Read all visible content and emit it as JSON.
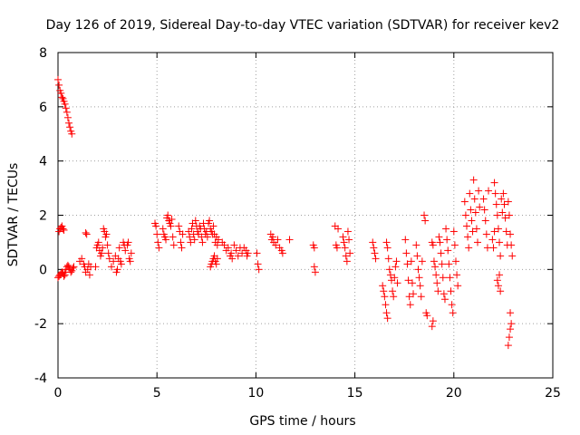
{
  "chart_data": {
    "type": "scatter",
    "title": "Day 126 of 2019, Sidereal Day-to-day VTEC variation (SDTVAR) for receiver kev2",
    "xlabel": "GPS time / hours",
    "ylabel": "SDTVAR / TECUs",
    "xlim": [
      0,
      25
    ],
    "ylim": [
      -4,
      8
    ],
    "grid": true,
    "marker": "+",
    "color": "#ff0000",
    "xticks": [
      "0",
      "5",
      "10",
      "15",
      "20",
      "25"
    ],
    "yticks": [
      "-4",
      "-2",
      "0",
      "2",
      "4",
      "6",
      "8"
    ],
    "series": [
      {
        "name": "SDTVAR",
        "points": [
          [
            0.0,
            7.0
          ],
          [
            0.05,
            6.8
          ],
          [
            0.1,
            6.6
          ],
          [
            0.15,
            6.5
          ],
          [
            0.2,
            6.35
          ],
          [
            0.25,
            6.3
          ],
          [
            0.3,
            6.2
          ],
          [
            0.35,
            6.1
          ],
          [
            0.4,
            5.95
          ],
          [
            0.45,
            5.8
          ],
          [
            0.5,
            5.6
          ],
          [
            0.55,
            5.4
          ],
          [
            0.6,
            5.25
          ],
          [
            0.65,
            5.1
          ],
          [
            0.7,
            5.0
          ],
          [
            0.0,
            -0.3
          ],
          [
            0.05,
            -0.25
          ],
          [
            0.1,
            -0.2
          ],
          [
            0.15,
            -0.15
          ],
          [
            0.2,
            -0.1
          ],
          [
            0.25,
            -0.15
          ],
          [
            0.3,
            -0.25
          ],
          [
            0.35,
            -0.2
          ],
          [
            0.05,
            1.4
          ],
          [
            0.1,
            1.5
          ],
          [
            0.15,
            1.55
          ],
          [
            0.2,
            1.6
          ],
          [
            0.25,
            1.5
          ],
          [
            0.3,
            1.45
          ],
          [
            0.35,
            -0.1
          ],
          [
            0.4,
            0.0
          ],
          [
            0.45,
            0.1
          ],
          [
            0.5,
            0.15
          ],
          [
            0.55,
            0.1
          ],
          [
            0.6,
            0.0
          ],
          [
            0.65,
            -0.1
          ],
          [
            0.7,
            -0.05
          ],
          [
            0.75,
            0.05
          ],
          [
            0.8,
            0.1
          ],
          [
            1.1,
            0.3
          ],
          [
            1.2,
            0.4
          ],
          [
            1.3,
            0.2
          ],
          [
            1.35,
            0.1
          ],
          [
            1.4,
            -0.1
          ],
          [
            1.5,
            0.0
          ],
          [
            1.55,
            0.2
          ],
          [
            1.6,
            -0.2
          ],
          [
            1.65,
            0.1
          ],
          [
            1.4,
            1.35
          ],
          [
            1.45,
            1.3
          ],
          [
            1.9,
            0.1
          ],
          [
            1.95,
            0.8
          ],
          [
            2.0,
            0.9
          ],
          [
            2.05,
            1.0
          ],
          [
            2.1,
            0.7
          ],
          [
            2.15,
            0.5
          ],
          [
            2.2,
            0.6
          ],
          [
            2.25,
            0.8
          ],
          [
            2.3,
            1.5
          ],
          [
            2.35,
            1.4
          ],
          [
            2.4,
            1.2
          ],
          [
            2.45,
            1.3
          ],
          [
            2.5,
            0.9
          ],
          [
            2.55,
            0.6
          ],
          [
            2.6,
            0.4
          ],
          [
            2.7,
            0.1
          ],
          [
            2.8,
            0.3
          ],
          [
            2.9,
            0.5
          ],
          [
            2.95,
            -0.1
          ],
          [
            3.0,
            0.0
          ],
          [
            3.05,
            0.4
          ],
          [
            3.1,
            0.8
          ],
          [
            3.15,
            0.3
          ],
          [
            3.2,
            0.2
          ],
          [
            3.3,
            1.0
          ],
          [
            3.35,
            0.9
          ],
          [
            3.4,
            0.7
          ],
          [
            3.5,
            0.9
          ],
          [
            3.55,
            1.0
          ],
          [
            3.6,
            0.4
          ],
          [
            3.65,
            0.3
          ],
          [
            3.7,
            0.6
          ],
          [
            4.9,
            1.7
          ],
          [
            4.95,
            1.6
          ],
          [
            5.0,
            1.3
          ],
          [
            5.05,
            1.0
          ],
          [
            5.1,
            0.8
          ],
          [
            5.3,
            1.5
          ],
          [
            5.35,
            1.3
          ],
          [
            5.4,
            1.2
          ],
          [
            5.45,
            1.1
          ],
          [
            5.5,
            1.9
          ],
          [
            5.55,
            2.0
          ],
          [
            5.6,
            1.8
          ],
          [
            5.65,
            1.7
          ],
          [
            5.7,
            1.6
          ],
          [
            5.75,
            1.85
          ],
          [
            5.8,
            1.2
          ],
          [
            5.85,
            0.9
          ],
          [
            6.1,
            1.6
          ],
          [
            6.15,
            1.4
          ],
          [
            6.2,
            1.0
          ],
          [
            6.25,
            0.8
          ],
          [
            6.3,
            1.3
          ],
          [
            6.6,
            1.4
          ],
          [
            6.65,
            1.2
          ],
          [
            6.7,
            1.0
          ],
          [
            6.75,
            1.5
          ],
          [
            6.8,
            1.7
          ],
          [
            6.85,
            1.3
          ],
          [
            6.9,
            1.1
          ],
          [
            6.95,
            1.8
          ],
          [
            7.0,
            1.6
          ],
          [
            7.05,
            1.4
          ],
          [
            7.1,
            1.3
          ],
          [
            7.15,
            1.6
          ],
          [
            7.2,
            1.5
          ],
          [
            7.25,
            1.2
          ],
          [
            7.3,
            1.0
          ],
          [
            7.35,
            1.7
          ],
          [
            7.4,
            1.5
          ],
          [
            7.45,
            1.3
          ],
          [
            7.5,
            1.4
          ],
          [
            7.55,
            1.2
          ],
          [
            7.6,
            1.7
          ],
          [
            7.65,
            1.8
          ],
          [
            7.7,
            1.5
          ],
          [
            7.75,
            1.4
          ],
          [
            7.8,
            1.3
          ],
          [
            7.85,
            1.6
          ],
          [
            7.9,
            1.3
          ],
          [
            7.95,
            1.0
          ],
          [
            8.0,
            1.2
          ],
          [
            8.05,
            0.9
          ],
          [
            8.1,
            1.1
          ],
          [
            7.7,
            0.1
          ],
          [
            7.75,
            0.2
          ],
          [
            7.8,
            0.3
          ],
          [
            7.85,
            0.4
          ],
          [
            7.9,
            0.5
          ],
          [
            7.95,
            0.3
          ],
          [
            8.0,
            0.2
          ],
          [
            8.05,
            0.4
          ],
          [
            8.3,
            1.0
          ],
          [
            8.4,
            0.9
          ],
          [
            8.5,
            0.7
          ],
          [
            8.6,
            0.8
          ],
          [
            8.7,
            0.5
          ],
          [
            8.75,
            0.6
          ],
          [
            8.8,
            0.4
          ],
          [
            8.9,
            0.9
          ],
          [
            9.0,
            0.7
          ],
          [
            9.1,
            0.5
          ],
          [
            9.2,
            0.8
          ],
          [
            9.3,
            0.6
          ],
          [
            9.4,
            0.8
          ],
          [
            9.5,
            0.7
          ],
          [
            9.55,
            0.5
          ],
          [
            9.6,
            0.6
          ],
          [
            10.05,
            0.6
          ],
          [
            10.1,
            0.2
          ],
          [
            10.15,
            0.0
          ],
          [
            10.75,
            1.3
          ],
          [
            10.8,
            1.1
          ],
          [
            10.85,
            1.2
          ],
          [
            10.9,
            1.0
          ],
          [
            11.0,
            0.9
          ],
          [
            11.1,
            1.1
          ],
          [
            11.2,
            0.8
          ],
          [
            11.3,
            0.7
          ],
          [
            11.35,
            0.6
          ],
          [
            11.7,
            1.1
          ],
          [
            12.9,
            0.9
          ],
          [
            12.95,
            0.8
          ],
          [
            12.95,
            0.1
          ],
          [
            13.0,
            -0.1
          ],
          [
            14.0,
            1.6
          ],
          [
            14.05,
            0.9
          ],
          [
            14.1,
            0.8
          ],
          [
            14.15,
            1.5
          ],
          [
            14.4,
            1.2
          ],
          [
            14.45,
            1.0
          ],
          [
            14.5,
            0.8
          ],
          [
            14.55,
            0.5
          ],
          [
            14.6,
            0.3
          ],
          [
            14.65,
            1.4
          ],
          [
            14.7,
            1.1
          ],
          [
            14.75,
            0.6
          ],
          [
            15.9,
            1.0
          ],
          [
            15.95,
            0.8
          ],
          [
            16.0,
            0.6
          ],
          [
            16.05,
            0.4
          ],
          [
            16.4,
            -0.6
          ],
          [
            16.45,
            -0.8
          ],
          [
            16.5,
            -1.0
          ],
          [
            16.55,
            -1.3
          ],
          [
            16.6,
            -1.6
          ],
          [
            16.65,
            -1.8
          ],
          [
            16.6,
            1.0
          ],
          [
            16.65,
            0.8
          ],
          [
            16.7,
            0.4
          ],
          [
            16.75,
            0.0
          ],
          [
            16.8,
            -0.2
          ],
          [
            16.85,
            -0.4
          ],
          [
            16.9,
            -0.8
          ],
          [
            16.95,
            -1.0
          ],
          [
            17.0,
            -0.3
          ],
          [
            17.05,
            0.1
          ],
          [
            17.1,
            0.3
          ],
          [
            17.15,
            -0.5
          ],
          [
            17.55,
            1.1
          ],
          [
            17.6,
            0.6
          ],
          [
            17.65,
            0.2
          ],
          [
            17.7,
            -0.4
          ],
          [
            17.75,
            -1.0
          ],
          [
            17.8,
            -1.3
          ],
          [
            17.85,
            0.3
          ],
          [
            17.9,
            -0.5
          ],
          [
            17.95,
            -0.9
          ],
          [
            18.1,
            0.9
          ],
          [
            18.15,
            0.5
          ],
          [
            18.2,
            0.0
          ],
          [
            18.25,
            -0.3
          ],
          [
            18.3,
            -0.6
          ],
          [
            18.35,
            -1.0
          ],
          [
            18.4,
            0.3
          ],
          [
            18.5,
            2.0
          ],
          [
            18.55,
            1.8
          ],
          [
            18.6,
            -1.6
          ],
          [
            18.65,
            -1.7
          ],
          [
            18.9,
            -2.1
          ],
          [
            18.95,
            -1.9
          ],
          [
            18.9,
            1.0
          ],
          [
            18.95,
            0.9
          ],
          [
            19.0,
            0.3
          ],
          [
            19.05,
            0.1
          ],
          [
            19.1,
            -0.2
          ],
          [
            19.15,
            -0.5
          ],
          [
            19.2,
            -0.8
          ],
          [
            19.25,
            1.2
          ],
          [
            19.3,
            1.0
          ],
          [
            19.35,
            0.6
          ],
          [
            19.4,
            0.2
          ],
          [
            19.45,
            -0.3
          ],
          [
            19.5,
            -0.9
          ],
          [
            19.55,
            -1.1
          ],
          [
            19.6,
            1.5
          ],
          [
            19.65,
            1.1
          ],
          [
            19.7,
            0.7
          ],
          [
            19.75,
            0.2
          ],
          [
            19.8,
            -0.3
          ],
          [
            19.85,
            -0.8
          ],
          [
            19.9,
            -1.3
          ],
          [
            19.95,
            -1.6
          ],
          [
            20.0,
            1.4
          ],
          [
            20.05,
            0.9
          ],
          [
            20.1,
            0.3
          ],
          [
            20.15,
            -0.2
          ],
          [
            20.2,
            -0.6
          ],
          [
            20.55,
            2.5
          ],
          [
            20.6,
            2.0
          ],
          [
            20.65,
            1.6
          ],
          [
            20.7,
            1.2
          ],
          [
            20.75,
            0.8
          ],
          [
            20.8,
            2.8
          ],
          [
            20.85,
            2.2
          ],
          [
            20.9,
            1.8
          ],
          [
            20.95,
            1.4
          ],
          [
            21.0,
            3.3
          ],
          [
            21.05,
            2.6
          ],
          [
            21.1,
            2.1
          ],
          [
            21.15,
            1.5
          ],
          [
            21.2,
            1.0
          ],
          [
            21.25,
            2.9
          ],
          [
            21.3,
            2.3
          ],
          [
            21.5,
            2.6
          ],
          [
            21.55,
            2.2
          ],
          [
            21.6,
            1.8
          ],
          [
            21.65,
            1.3
          ],
          [
            21.7,
            0.8
          ],
          [
            21.75,
            2.9
          ],
          [
            21.95,
            1.1
          ],
          [
            22.0,
            0.8
          ],
          [
            22.05,
            1.4
          ],
          [
            22.05,
            3.2
          ],
          [
            22.1,
            2.8
          ],
          [
            22.15,
            2.4
          ],
          [
            22.2,
            2.0
          ],
          [
            22.25,
            1.5
          ],
          [
            22.3,
            1.0
          ],
          [
            22.35,
            0.5
          ],
          [
            22.4,
            2.6
          ],
          [
            22.45,
            2.1
          ],
          [
            22.2,
            -0.4
          ],
          [
            22.25,
            -0.6
          ],
          [
            22.3,
            -0.2
          ],
          [
            22.35,
            -0.8
          ],
          [
            22.5,
            2.8
          ],
          [
            22.55,
            2.4
          ],
          [
            22.6,
            1.9
          ],
          [
            22.65,
            1.4
          ],
          [
            22.7,
            0.9
          ],
          [
            22.75,
            2.5
          ],
          [
            22.8,
            2.0
          ],
          [
            22.85,
            1.3
          ],
          [
            22.9,
            0.9
          ],
          [
            22.95,
            0.5
          ],
          [
            22.75,
            -2.8
          ],
          [
            22.8,
            -2.5
          ],
          [
            22.85,
            -2.2
          ],
          [
            22.9,
            -2.0
          ],
          [
            22.85,
            -1.6
          ]
        ]
      }
    ]
  }
}
